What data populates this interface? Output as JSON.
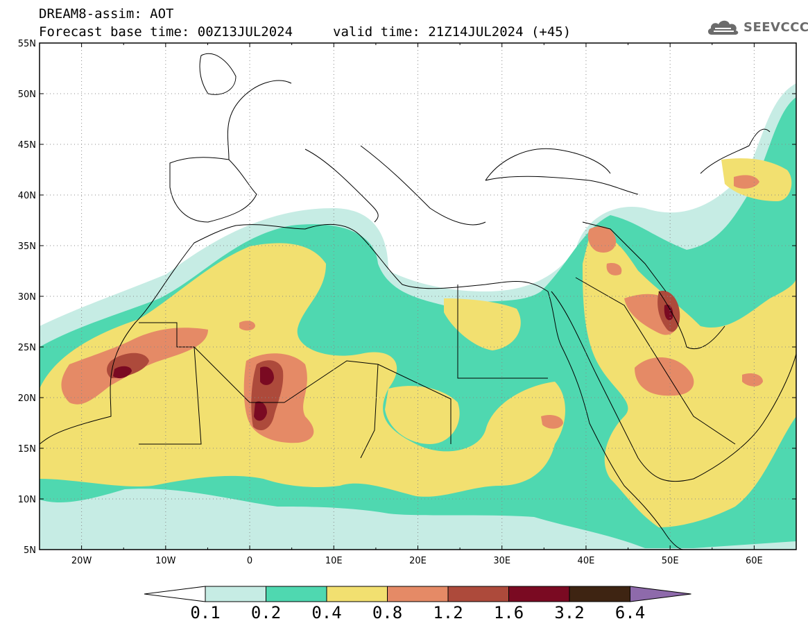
{
  "header": {
    "title": "DREAM8-assim: AOT",
    "base_time": "Forecast base time: 00Z13JUL2024",
    "valid_time": "valid time: 21Z14JUL2024 (+45)"
  },
  "logo": {
    "text": "SEEVCCC",
    "icon": "cloud-icon"
  },
  "map": {
    "lon_range": [
      -25,
      65
    ],
    "lat_range": [
      5,
      55
    ],
    "lat_labels": [
      "5N",
      "10N",
      "15N",
      "20N",
      "25N",
      "30N",
      "35N",
      "40N",
      "45N",
      "50N",
      "55N"
    ],
    "lon_labels": [
      "20W",
      "10W",
      "0",
      "10E",
      "20E",
      "30E",
      "40E",
      "50E",
      "60E"
    ],
    "gridlines": "dotted"
  },
  "colorbar": {
    "labels": [
      "0.1",
      "0.2",
      "0.4",
      "0.8",
      "1.2",
      "1.6",
      "3.2",
      "6.4"
    ],
    "colors": [
      "#ffffff",
      "#c6ece4",
      "#4fd8b0",
      "#f2e070",
      "#e58a66",
      "#ad4a3b",
      "#7a0a22",
      "#3e2412",
      "#8e6aab"
    ]
  }
}
